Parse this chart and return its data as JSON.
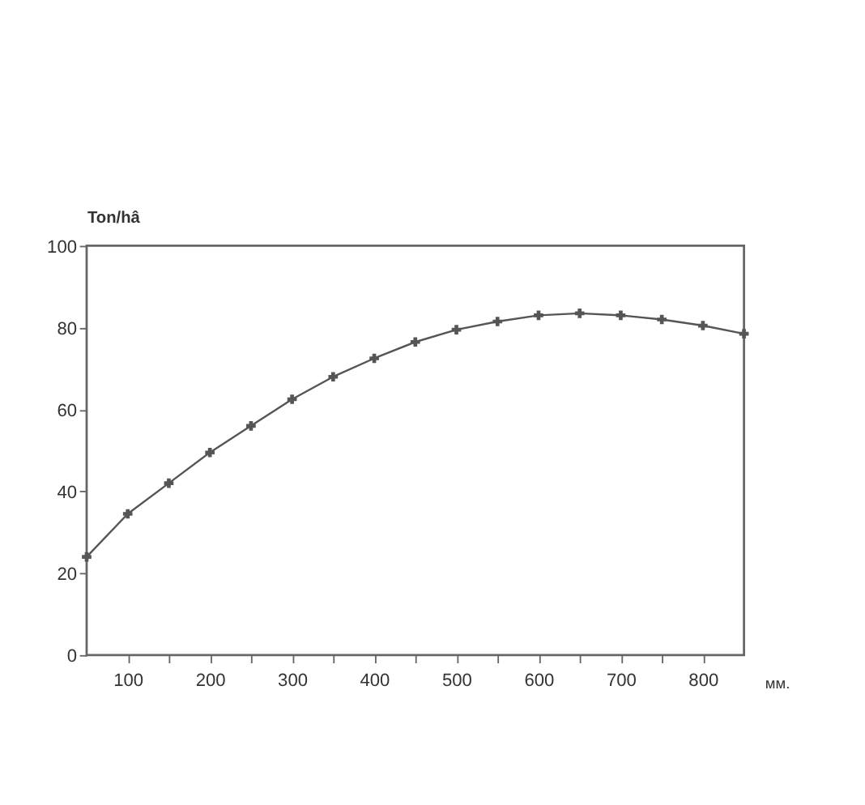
{
  "chart_data": {
    "type": "line",
    "xlabel": "мм.",
    "ylabel": "Ton/hâ",
    "x": [
      50,
      100,
      150,
      200,
      250,
      300,
      350,
      400,
      450,
      500,
      550,
      600,
      650,
      700,
      750,
      800,
      850
    ],
    "values": [
      24,
      34.5,
      42,
      49.5,
      56,
      62.5,
      68,
      72.5,
      76.5,
      79.5,
      81.5,
      83,
      83.5,
      83,
      82,
      80.5,
      78.5
    ],
    "color": "#555555",
    "marker": "cross",
    "line_style": "solid",
    "grid": false,
    "xlim": [
      50,
      850
    ],
    "xticks": [
      100,
      {
        "value": 150,
        "label": null
      },
      200,
      {
        "value": 250,
        "label": null
      },
      300,
      {
        "value": 350,
        "label": null
      },
      400,
      {
        "value": 450,
        "label": null
      },
      500,
      {
        "value": 550,
        "label": null
      },
      600,
      {
        "value": 650,
        "label": null
      },
      700,
      {
        "value": 750,
        "label": null
      },
      800
    ],
    "ylim": [
      0,
      100
    ],
    "yticks": [
      0,
      20,
      40,
      60,
      80,
      100
    ]
  }
}
